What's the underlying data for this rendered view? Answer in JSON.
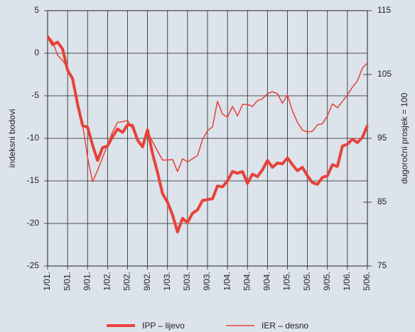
{
  "chart_data": {
    "type": "line",
    "y_label": "indeksni bodovi",
    "y2_label": "dugoročni prosjek = 100",
    "categories": [
      "1/01.",
      null,
      null,
      null,
      "5/01.",
      null,
      null,
      null,
      "9/01.",
      null,
      null,
      null,
      "1/02.",
      null,
      null,
      null,
      "5/02.",
      null,
      null,
      null,
      "9/02.",
      null,
      null,
      null,
      "1/03.",
      null,
      null,
      null,
      "5/03.",
      null,
      null,
      null,
      "9/03.",
      null,
      null,
      null,
      "1/04.",
      null,
      null,
      null,
      "5/04.",
      null,
      null,
      null,
      "9/04.",
      null,
      null,
      null,
      "1/05.",
      null,
      null,
      null,
      "5/05.",
      null,
      null,
      null,
      "9/05.",
      null,
      null,
      null,
      "1/06.",
      null,
      null,
      null,
      "5/06."
    ],
    "series": [
      {
        "name": "IPP – lijevo",
        "color": "#e8413a",
        "line_width": 4,
        "axis": "y",
        "values": [
          2.0,
          1.0,
          1.3,
          0.5,
          -2.0,
          -3.0,
          -6.0,
          -8.5,
          -8.7,
          -10.8,
          -12.6,
          -11.1,
          -10.9,
          -9.8,
          -8.9,
          -9.3,
          -8.4,
          -8.5,
          -10.2,
          -11.0,
          -9.0,
          -11.8,
          -14.0,
          -16.5,
          -17.5,
          -19.0,
          -21.0,
          -19.4,
          -19.9,
          -18.8,
          -18.4,
          -17.3,
          -17.2,
          -17.1,
          -15.6,
          -15.7,
          -15.0,
          -13.9,
          -14.1,
          -13.9,
          -15.3,
          -14.2,
          -14.5,
          -13.7,
          -12.6,
          -13.4,
          -12.9,
          -13.0,
          -12.3,
          -13.1,
          -13.8,
          -13.4,
          -14.4,
          -15.2,
          -15.4,
          -14.6,
          -14.4,
          -13.1,
          -13.3,
          -10.9,
          -10.7,
          -10.1,
          -10.5,
          -9.9,
          -8.5
        ]
      },
      {
        "name": "IER – desno",
        "color": "#e8413a",
        "line_width": 1.5,
        "axis": "y2",
        "values": [
          111.1,
          110.2,
          108.0,
          107.2,
          106.0,
          104.4,
          100.0,
          97.2,
          92.0,
          88.2,
          90.0,
          92.0,
          94.0,
          96.0,
          97.5,
          97.6,
          97.8,
          96.5,
          94.5,
          93.5,
          96.0,
          94.5,
          93.0,
          91.6,
          91.6,
          91.7,
          89.8,
          91.8,
          91.3,
          91.8,
          92.3,
          94.8,
          96.2,
          96.8,
          100.8,
          98.8,
          98.3,
          100.0,
          98.5,
          100.3,
          100.3,
          100.0,
          100.9,
          101.2,
          102.0,
          102.3,
          102.0,
          100.5,
          101.8,
          99.3,
          97.5,
          96.3,
          96.0,
          96.1,
          97.1,
          97.3,
          98.5,
          100.4,
          99.8,
          100.8,
          101.8,
          103.0,
          104.0,
          106.0,
          106.8
        ]
      }
    ],
    "ylim": [
      -25,
      5
    ],
    "yticks": [
      -25,
      -20,
      -15,
      -10,
      -5,
      0,
      5
    ],
    "y2lim": [
      75,
      115
    ],
    "y2ticks": [
      75,
      85,
      95,
      105,
      115
    ],
    "grid": true,
    "legend": "bottom"
  }
}
